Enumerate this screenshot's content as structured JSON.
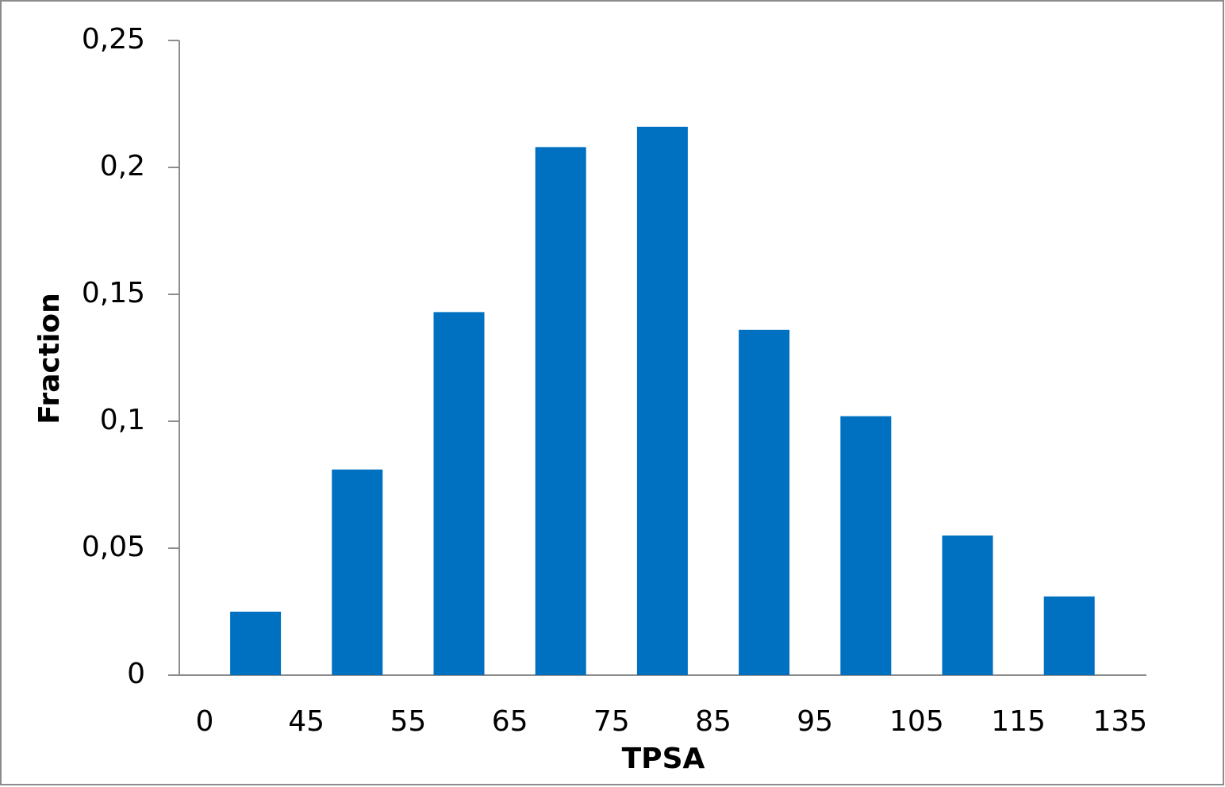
{
  "chart_data": {
    "type": "histogram",
    "xlabel": "TPSA",
    "ylabel": "Fraction",
    "bins": [
      0,
      45,
      55,
      65,
      75,
      85,
      95,
      105,
      115,
      135
    ],
    "values": [
      0.025,
      0.081,
      0.143,
      0.208,
      0.216,
      0.136,
      0.102,
      0.055,
      0.031
    ],
    "color": "#0070c0",
    "ylim": [
      0,
      0.25
    ],
    "yticks": [
      0,
      {
        "value": 0.05,
        "label": "0,05"
      },
      {
        "value": 0.1,
        "label": "0,1"
      },
      {
        "value": 0.15,
        "label": "0,15"
      },
      {
        "value": 0.2,
        "label": "0,2"
      },
      {
        "value": 0.25,
        "label": "0,25"
      }
    ],
    "grid": false
  }
}
